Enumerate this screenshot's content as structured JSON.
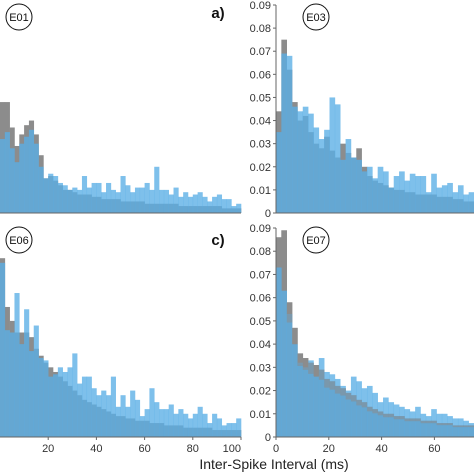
{
  "figure": {
    "xlabel": "Inter-Spike Interval (ms)"
  },
  "colors": {
    "grey": "#8c8c8c",
    "blue": "#5aaee6",
    "axis": "#666666",
    "background": "#ffffff"
  },
  "chart_data": [
    {
      "id": "E01",
      "letter": "a)",
      "type": "bar",
      "xlim": [
        0,
        100
      ],
      "ylim": [
        0,
        0.09
      ],
      "xticks": [],
      "yticks": [],
      "grey_top": false,
      "series": [
        {
          "name": "",
          "color": "grey",
          "values": [
            0.048,
            0.048,
            0.037,
            0.029,
            0.034,
            0.038,
            0.04,
            0.034,
            0.025,
            0.015,
            0.016,
            0.014,
            0.012,
            0.01,
            0.01,
            0.009,
            0.008,
            0.008,
            0.008,
            0.007,
            0.007,
            0.006,
            0.006,
            0.006,
            0.006,
            0.005,
            0.005,
            0.005,
            0.005,
            0.005,
            0.004,
            0.004,
            0.004,
            0.004,
            0.004,
            0.004,
            0.004,
            0.003,
            0.003,
            0.003,
            0.003,
            0.003,
            0.003,
            0.003,
            0.003,
            0.003,
            0.002,
            0.002,
            0.002,
            0.002
          ]
        },
        {
          "name": "",
          "color": "blue",
          "values": [
            0.032,
            0.035,
            0.028,
            0.022,
            0.03,
            0.033,
            0.036,
            0.03,
            0.02,
            0.015,
            0.017,
            0.016,
            0.013,
            0.012,
            0.01,
            0.011,
            0.01,
            0.016,
            0.011,
            0.013,
            0.013,
            0.009,
            0.013,
            0.01,
            0.009,
            0.016,
            0.012,
            0.009,
            0.011,
            0.011,
            0.013,
            0.01,
            0.02,
            0.01,
            0.01,
            0.008,
            0.011,
            0.007,
            0.009,
            0.007,
            0.008,
            0.009,
            0.007,
            0.005,
            0.007,
            0.008,
            0.006,
            0.006,
            0.003,
            0.004
          ]
        }
      ]
    },
    {
      "id": "E03",
      "letter": "",
      "type": "bar",
      "xlim": [
        0,
        75
      ],
      "ylim": [
        0,
        0.09
      ],
      "xticks": [],
      "yticks": [
        0,
        0.01,
        0.02,
        0.03,
        0.04,
        0.05,
        0.06,
        0.07,
        0.08,
        0.09
      ],
      "grey_top": false,
      "series": [
        {
          "name": "",
          "color": "grey",
          "values": [
            0.044,
            0.075,
            0.062,
            0.048,
            0.04,
            0.042,
            0.035,
            0.03,
            0.028,
            0.033,
            0.027,
            0.024,
            0.03,
            0.026,
            0.024,
            0.028,
            0.02,
            0.016,
            0.014,
            0.013,
            0.012,
            0.011,
            0.01,
            0.01,
            0.009,
            0.009,
            0.008,
            0.008,
            0.008,
            0.008,
            0.007,
            0.007,
            0.007,
            0.006,
            0.006,
            0.005,
            0.005
          ]
        },
        {
          "name": "",
          "color": "blue",
          "values": [
            0.035,
            0.069,
            0.068,
            0.046,
            0.044,
            0.046,
            0.043,
            0.037,
            0.032,
            0.036,
            0.05,
            0.047,
            0.023,
            0.032,
            0.024,
            0.023,
            0.018,
            0.02,
            0.015,
            0.02,
            0.018,
            0.011,
            0.016,
            0.018,
            0.014,
            0.017,
            0.016,
            0.016,
            0.009,
            0.017,
            0.011,
            0.012,
            0.013,
            0.009,
            0.012,
            0.008,
            0.009
          ]
        }
      ]
    },
    {
      "id": "E06",
      "letter": "c)",
      "type": "bar",
      "xlim": [
        0,
        100
      ],
      "ylim": [
        0,
        0.09
      ],
      "xticks": [
        20,
        40,
        60,
        80,
        100
      ],
      "yticks": [],
      "grey_top": false,
      "series": [
        {
          "name": "",
          "color": "grey",
          "values": [
            0.077,
            0.056,
            0.05,
            0.045,
            0.045,
            0.045,
            0.043,
            0.038,
            0.035,
            0.032,
            0.03,
            0.028,
            0.026,
            0.024,
            0.022,
            0.02,
            0.018,
            0.016,
            0.015,
            0.014,
            0.013,
            0.012,
            0.011,
            0.01,
            0.009,
            0.009,
            0.008,
            0.008,
            0.007,
            0.007,
            0.007,
            0.006,
            0.006,
            0.006,
            0.005,
            0.005,
            0.005,
            0.005,
            0.004,
            0.004,
            0.004,
            0.004,
            0.004,
            0.004,
            0.003,
            0.003,
            0.003,
            0.003,
            0.003,
            0.003
          ]
        },
        {
          "name": "",
          "color": "blue",
          "values": [
            0.075,
            0.046,
            0.045,
            0.062,
            0.04,
            0.055,
            0.037,
            0.048,
            0.034,
            0.033,
            0.026,
            0.027,
            0.03,
            0.028,
            0.03,
            0.036,
            0.023,
            0.026,
            0.026,
            0.021,
            0.018,
            0.02,
            0.018,
            0.026,
            0.013,
            0.018,
            0.013,
            0.02,
            0.016,
            0.009,
            0.012,
            0.021,
            0.015,
            0.012,
            0.012,
            0.014,
            0.01,
            0.012,
            0.01,
            0.008,
            0.01,
            0.013,
            0.01,
            0.006,
            0.01,
            0.008,
            0.005,
            0.006,
            0.006,
            0.008
          ]
        }
      ]
    },
    {
      "id": "E07",
      "letter": "",
      "type": "bar",
      "xlim": [
        0,
        75
      ],
      "ylim": [
        0,
        0.09
      ],
      "xticks": [
        0,
        20,
        40,
        60
      ],
      "yticks": [
        0,
        0.01,
        0.02,
        0.03,
        0.04,
        0.05,
        0.06,
        0.07,
        0.08,
        0.09
      ],
      "grey_top": true,
      "series": [
        {
          "name": "",
          "color": "grey",
          "values": [
            0.086,
            0.089,
            0.058,
            0.047,
            0.036,
            0.034,
            0.032,
            0.031,
            0.029,
            0.025,
            0.024,
            0.022,
            0.021,
            0.019,
            0.018,
            0.016,
            0.015,
            0.013,
            0.012,
            0.011,
            0.01,
            0.01,
            0.009,
            0.009,
            0.008,
            0.008,
            0.008,
            0.007,
            0.007,
            0.007,
            0.006,
            0.006,
            0.006,
            0.005,
            0.005,
            0.005,
            0.005
          ]
        },
        {
          "name": "",
          "color": "blue",
          "values": [
            0.073,
            0.063,
            0.053,
            0.04,
            0.032,
            0.03,
            0.033,
            0.026,
            0.034,
            0.028,
            0.027,
            0.025,
            0.022,
            0.02,
            0.026,
            0.024,
            0.021,
            0.022,
            0.019,
            0.015,
            0.017,
            0.015,
            0.014,
            0.013,
            0.012,
            0.011,
            0.013,
            0.01,
            0.009,
            0.012,
            0.01,
            0.01,
            0.009,
            0.008,
            0.008,
            0.007,
            0.006
          ]
        }
      ]
    }
  ]
}
